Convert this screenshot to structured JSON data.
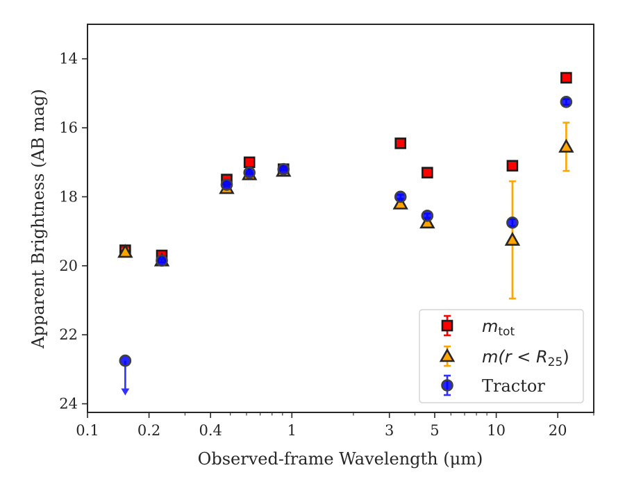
{
  "chart_data": {
    "type": "scatter",
    "title": "",
    "xlabel": "Observed-frame Wavelength (μm)",
    "ylabel": "Apparent Brightness (AB mag)",
    "xscale": "log",
    "xlim": [
      0.1,
      30
    ],
    "ylim": [
      24.25,
      13.0
    ],
    "y_inverted": true,
    "x_tick_values": [
      0.1,
      0.2,
      0.4,
      1,
      3,
      5,
      10,
      20
    ],
    "x_tick_labels": [
      "0.1",
      "0.2",
      "0.4",
      "1",
      "3",
      "5",
      "10",
      "20"
    ],
    "y_tick_values": [
      14,
      16,
      18,
      20,
      22,
      24
    ],
    "y_tick_labels": [
      "14",
      "16",
      "18",
      "20",
      "22",
      "24"
    ],
    "grid": false,
    "legend_position": "lower-right",
    "legend": {
      "mtot": {
        "base": "m",
        "sub": "tot"
      },
      "mr": {
        "base": "m",
        "expr": "(r < R",
        "sub": "25",
        "close": ")"
      },
      "tractor": "Tractor"
    },
    "series": [
      {
        "key": "mtot",
        "marker": "square",
        "color": "#ff0000",
        "edge": "#1a1a1a",
        "errcolor": "#ff0000",
        "points": [
          {
            "x": 0.153,
            "y": 19.55,
            "err": 0.12
          },
          {
            "x": 0.231,
            "y": 19.7,
            "err": 0.12
          },
          {
            "x": 0.48,
            "y": 17.5,
            "err": 0.1
          },
          {
            "x": 0.62,
            "y": 17.0,
            "err": 0.08
          },
          {
            "x": 0.91,
            "y": 17.2,
            "err": 0.06
          },
          {
            "x": 3.4,
            "y": 16.45,
            "err": 0.05
          },
          {
            "x": 4.6,
            "y": 17.3,
            "err": 0.05
          },
          {
            "x": 12.0,
            "y": 17.1,
            "err": 0.08
          },
          {
            "x": 22.0,
            "y": 14.55,
            "err": 0.08
          }
        ]
      },
      {
        "key": "mr",
        "marker": "triangle",
        "color": "#ffa500",
        "edge": "#262626",
        "errcolor": "#ffa500",
        "points": [
          {
            "x": 0.153,
            "y": 19.6,
            "err": 0.08
          },
          {
            "x": 0.231,
            "y": 19.85,
            "err": 0.08
          },
          {
            "x": 0.48,
            "y": 17.75,
            "err": 0.05
          },
          {
            "x": 0.62,
            "y": 17.35,
            "err": 0.04
          },
          {
            "x": 0.91,
            "y": 17.25,
            "err": 0.04
          },
          {
            "x": 3.4,
            "y": 18.2,
            "err": 0.06
          },
          {
            "x": 4.6,
            "y": 18.75,
            "err": 0.06
          },
          {
            "x": 12.0,
            "y": 19.25,
            "err": 1.7
          },
          {
            "x": 22.0,
            "y": 16.55,
            "err": 0.7
          }
        ]
      },
      {
        "key": "tractor",
        "marker": "circle",
        "color": "#0000ff",
        "edge": "#404040",
        "errcolor": "#3030ff",
        "points": [
          {
            "x": 0.153,
            "y": 22.75,
            "err": 0,
            "upper_limit": true
          },
          {
            "x": 0.231,
            "y": 19.85,
            "err": 0.05
          },
          {
            "x": 0.48,
            "y": 17.65,
            "err": 0.05
          },
          {
            "x": 0.62,
            "y": 17.3,
            "err": 0.04
          },
          {
            "x": 0.91,
            "y": 17.2,
            "err": 0.03
          },
          {
            "x": 3.4,
            "y": 18.0,
            "err": 0.06
          },
          {
            "x": 4.6,
            "y": 18.55,
            "err": 0.06
          },
          {
            "x": 12.0,
            "y": 18.75,
            "err": 0.1
          },
          {
            "x": 22.0,
            "y": 15.25,
            "err": 0.08
          }
        ]
      }
    ]
  }
}
